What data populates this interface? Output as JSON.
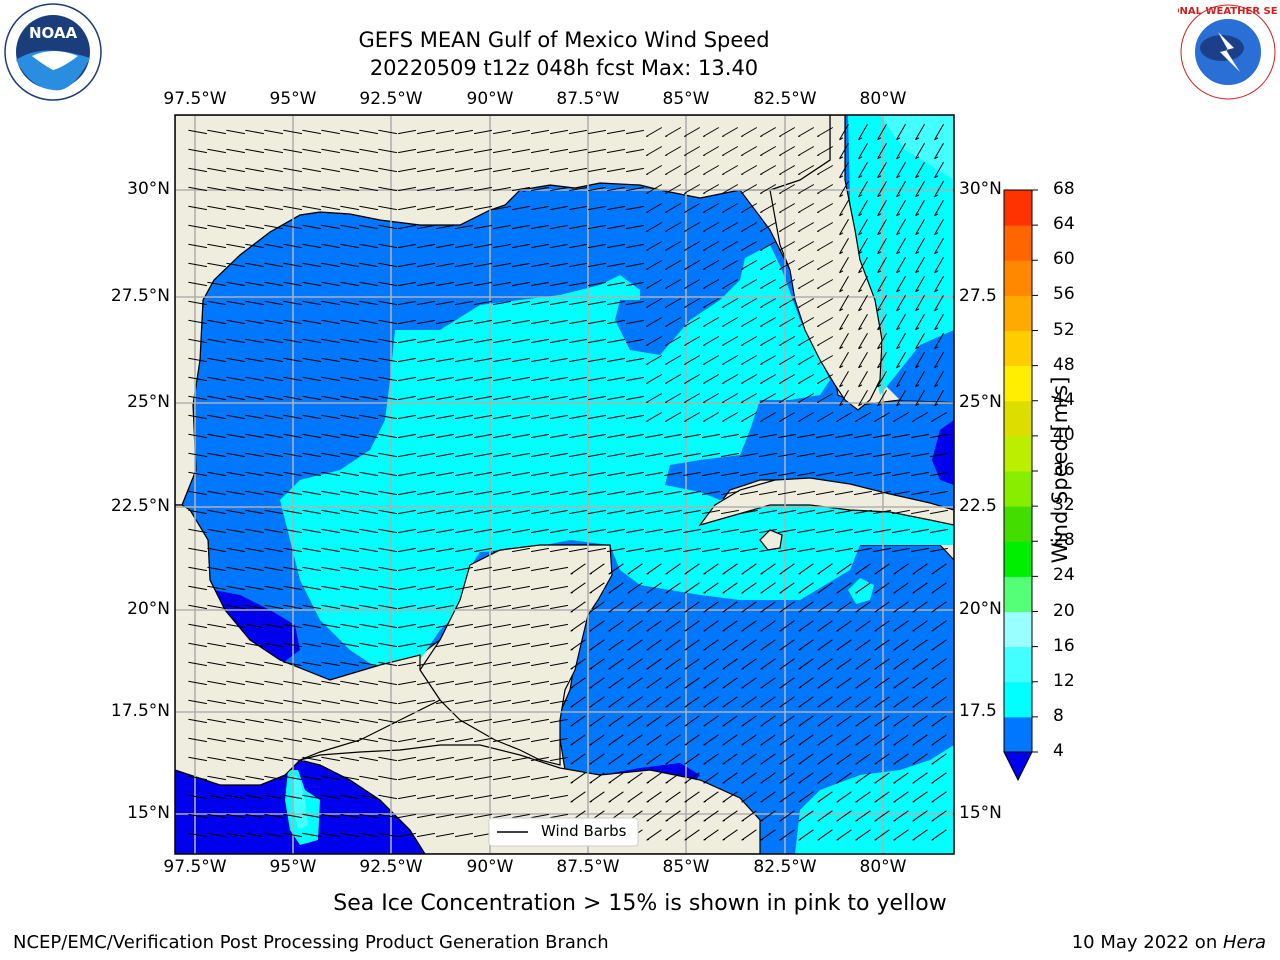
{
  "title": {
    "line1": "GEFS MEAN Gulf of Mexico Wind Speed",
    "line2": "20220509 t12z 048h fcst   Max: 13.40"
  },
  "logos": {
    "left": {
      "name": "NOAA",
      "ring_text": "NATIONAL OCEANIC AND ATMOSPHERIC ADMINISTRATION · U.S. DEPARTMENT OF COMMERCE"
    },
    "right": {
      "ring_text": "NATIONAL WEATHER SERVICE"
    }
  },
  "axes": {
    "lon_labels": [
      "97.5°W",
      "95°W",
      "92.5°W",
      "90°W",
      "87.5°W",
      "85°W",
      "82.5°W",
      "80°W"
    ],
    "lat_labels_left": [
      "30°N",
      "27.5°N",
      "25°N",
      "22.5°N",
      "20°N",
      "17.5°N",
      "15°N"
    ],
    "lat_labels_right": [
      "30°N",
      "27.5",
      "25°N",
      "22.5",
      "20°N",
      "17.5",
      "15°N"
    ]
  },
  "colorbar": {
    "label": "Wind Speed [m/s]",
    "ticks": [
      "4",
      "8",
      "12",
      "16",
      "20",
      "24",
      "28",
      "32",
      "36",
      "40",
      "44",
      "48",
      "52",
      "56",
      "60",
      "64",
      "68"
    ],
    "colors": [
      "#0077ff",
      "#00ffff",
      "#44ffff",
      "#99ffff",
      "#55ff77",
      "#00ee00",
      "#44dd00",
      "#88ee00",
      "#bbee00",
      "#dddd00",
      "#ffee00",
      "#ffcc00",
      "#ffaa00",
      "#ff8800",
      "#ff6600",
      "#ff3300"
    ],
    "under_color": "#0000ee"
  },
  "legend": {
    "label": "Wind Barbs"
  },
  "note": "Sea Ice Concentration > 15% is shown in pink to yellow",
  "footer": {
    "left": "NCEP/EMC/Verification Post Processing Product Generation Branch",
    "right_prefix": "10 May 2022 on ",
    "right_machine": "Hera"
  },
  "colors": {
    "land": "#efeddd",
    "wind_4_8": "#0077ff",
    "wind_8_12": "#00ffff",
    "wind_12_16": "#44ffff",
    "wind_below_4": "#0000ee",
    "grid": "#b0b0b0"
  }
}
